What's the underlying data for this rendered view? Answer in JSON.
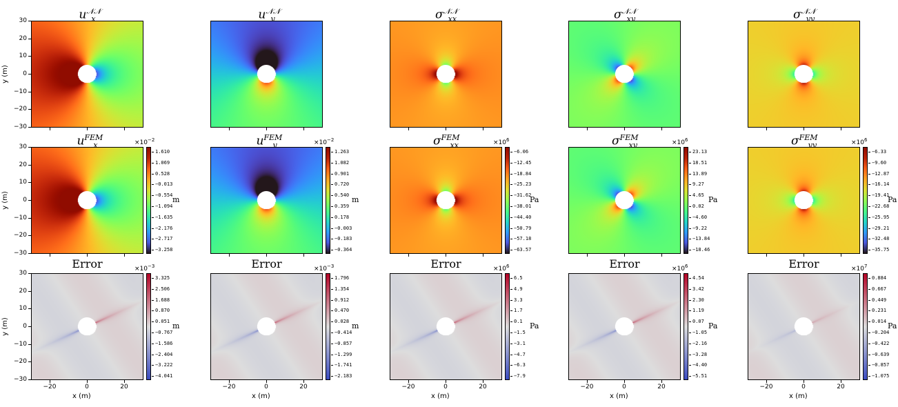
{
  "chart_data": {
    "type": "heatmap",
    "x_label": "x (m)",
    "y_label": "y (m)",
    "xlim": [
      -30,
      30
    ],
    "ylim": [
      -30,
      30
    ],
    "x_ticks": [
      "−20",
      "0",
      "20"
    ],
    "y_ticks": [
      "30",
      "20",
      "10",
      "0",
      "−10",
      "−20",
      "−30"
    ],
    "rows": [
      {
        "name": "prediction",
        "colormap": "turbo",
        "panels": [
          {
            "field": "ux",
            "title": {
              "base": "u",
              "sub": "x",
              "sup": "𝒩𝒩"
            }
          },
          {
            "field": "uy",
            "title": {
              "base": "u",
              "sub": "y",
              "sup": "𝒩𝒩"
            }
          },
          {
            "field": "sxx",
            "title": {
              "base": "σ",
              "sub": "xx",
              "sup": "𝒩𝒩"
            }
          },
          {
            "field": "sxy",
            "title": {
              "base": "σ",
              "sub": "xy",
              "sup": "𝒩𝒩"
            }
          },
          {
            "field": "syy",
            "title": {
              "base": "σ",
              "sub": "yy",
              "sup": "𝒩𝒩"
            }
          }
        ]
      },
      {
        "name": "fem",
        "colormap": "turbo",
        "panels": [
          {
            "field": "ux",
            "title": {
              "base": "u",
              "sub": "x",
              "sup": "FEM"
            },
            "multiplier": {
              "base": "×10",
              "exp": "−2"
            },
            "unit": "m",
            "ticks": [
              "1.610",
              "1.069",
              "0.528",
              "−0.013",
              "−0.554",
              "−1.094",
              "−1.635",
              "−2.176",
              "−2.717",
              "−3.258"
            ]
          },
          {
            "field": "uy",
            "title": {
              "base": "u",
              "sub": "y",
              "sup": "FEM"
            },
            "multiplier": {
              "base": "×10",
              "exp": "−2"
            },
            "unit": "m",
            "ticks": [
              "1.263",
              "1.082",
              "0.901",
              "0.720",
              "0.540",
              "0.359",
              "0.178",
              "−0.003",
              "−0.183",
              "−0.364"
            ]
          },
          {
            "field": "sxx",
            "title": {
              "base": "σ",
              "sub": "xx",
              "sup": "FEM"
            },
            "multiplier": {
              "base": "×10",
              "exp": "6"
            },
            "unit": "Pa",
            "ticks": [
              "−6.06",
              "−12.45",
              "−18.84",
              "−25.23",
              "−31.62",
              "−38.01",
              "−44.40",
              "−50.79",
              "−57.18",
              "−63.57"
            ]
          },
          {
            "field": "sxy",
            "title": {
              "base": "σ",
              "sub": "xy",
              "sup": "FEM"
            },
            "multiplier": {
              "base": "×10",
              "exp": "6"
            },
            "unit": "Pa",
            "ticks": [
              "23.13",
              "18.51",
              "13.89",
              "9.27",
              "4.65",
              "0.02",
              "−4.60",
              "−9.22",
              "−13.84",
              "−18.46"
            ]
          },
          {
            "field": "syy",
            "title": {
              "base": "σ",
              "sub": "yy",
              "sup": "FEM"
            },
            "multiplier": {
              "base": "×10",
              "exp": "6"
            },
            "unit": "Pa",
            "ticks": [
              "−6.33",
              "−9.60",
              "−12.87",
              "−16.14",
              "−19.41",
              "−22.68",
              "−25.95",
              "−29.21",
              "−32.48",
              "−35.75"
            ]
          }
        ]
      },
      {
        "name": "error",
        "colormap": "coolwarm",
        "panels": [
          {
            "field": "err_ux",
            "title": {
              "text": "Error"
            },
            "multiplier": {
              "base": "×10",
              "exp": "−3"
            },
            "unit": "m",
            "ticks": [
              "3.325",
              "2.506",
              "1.688",
              "0.870",
              "0.051",
              "−0.767",
              "−1.586",
              "−2.404",
              "−3.222",
              "−4.041"
            ]
          },
          {
            "field": "err_uy",
            "title": {
              "text": "Error"
            },
            "multiplier": {
              "base": "×10",
              "exp": "−3"
            },
            "unit": "m",
            "ticks": [
              "1.796",
              "1.354",
              "0.912",
              "0.470",
              "0.028",
              "−0.414",
              "−0.857",
              "−1.299",
              "−1.741",
              "−2.183"
            ]
          },
          {
            "field": "err_sxx",
            "title": {
              "text": "Error"
            },
            "multiplier": {
              "base": "×10",
              "exp": "6"
            },
            "unit": "Pa",
            "ticks": [
              "6.5",
              "4.9",
              "3.3",
              "1.7",
              "0.1",
              "−1.5",
              "−3.1",
              "−4.7",
              "−6.3",
              "−7.9"
            ]
          },
          {
            "field": "err_sxy",
            "title": {
              "text": "Error"
            },
            "multiplier": {
              "base": "×10",
              "exp": "6"
            },
            "unit": "Pa",
            "ticks": [
              "4.54",
              "3.42",
              "2.30",
              "1.19",
              "0.07",
              "−1.05",
              "−2.16",
              "−3.28",
              "−4.40",
              "−5.51"
            ]
          },
          {
            "field": "err_syy",
            "title": {
              "text": "Error"
            },
            "multiplier": {
              "base": "×10",
              "exp": "7"
            },
            "unit": "Pa",
            "ticks": [
              "0.884",
              "0.667",
              "0.449",
              "0.231",
              "0.014",
              "−0.204",
              "−0.422",
              "−0.639",
              "−0.857",
              "−1.075"
            ]
          }
        ]
      }
    ]
  }
}
